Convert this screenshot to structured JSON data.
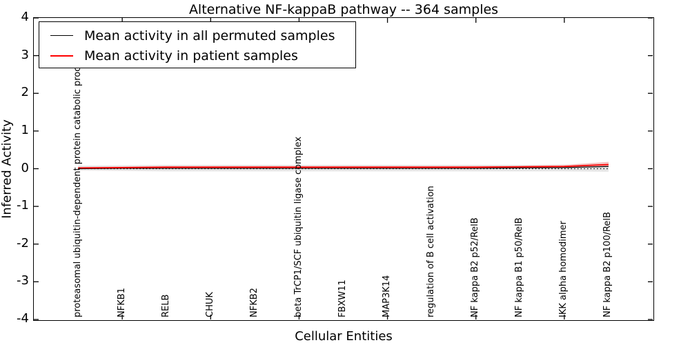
{
  "title": "Alternative NF-kappaB pathway -- 364 samples",
  "axes": {
    "ylabel": "Inferred Activity",
    "xlabel": "Cellular Entities"
  },
  "legend": {
    "position": "upper left",
    "items": [
      {
        "label": "Mean activity in all permuted samples",
        "color": "#000000",
        "thickness": 1.5
      },
      {
        "label": "Mean activity in patient samples",
        "color": "#ff0000",
        "thickness": 2
      }
    ]
  },
  "colors": {
    "permuted_line": "#000000",
    "patient_line": "#ff0000",
    "permuted_band": "#e6e6e6",
    "patient_band": "#f4c2c2",
    "zero_line": "#000000",
    "axis": "#000000"
  },
  "chart_data": {
    "type": "line",
    "title": "Alternative NF-kappaB pathway -- 364 samples",
    "xlabel": "Cellular Entities",
    "ylabel": "Inferred Activity",
    "xlim": [
      0,
      14
    ],
    "ylim": [
      -4,
      4
    ],
    "grid": false,
    "legend_position": "upper left",
    "categories": [
      "proteasomal ubiquitin-dependent protein catabolic process",
      "NFKB1",
      "RELB",
      "CHUK",
      "NFKB2",
      "beta TrCP1/SCF ubiquitin ligase complex",
      "FBXW11",
      "MAP3K14",
      "regulation of B cell activation",
      "NF kappa B2 p52/RelB",
      "NF kappa B1 p50/RelB",
      "IKK alpha homodimer",
      "NF kappa B2 p100/RelB"
    ],
    "x": [
      1,
      2,
      3,
      4,
      5,
      6,
      7,
      8,
      9,
      10,
      11,
      12,
      13
    ],
    "series": [
      {
        "name": "Mean activity in all permuted samples",
        "color": "#000000",
        "style": "solid",
        "width": 1.2,
        "values": [
          0.0,
          0.01,
          0.01,
          0.01,
          0.01,
          0.01,
          0.01,
          0.01,
          0.01,
          0.01,
          0.02,
          0.03,
          0.06
        ]
      },
      {
        "name": "Mean activity in patient samples",
        "color": "#ff0000",
        "style": "solid",
        "width": 1.8,
        "values": [
          0.02,
          0.03,
          0.04,
          0.04,
          0.04,
          0.04,
          0.04,
          0.04,
          0.04,
          0.04,
          0.05,
          0.06,
          0.11
        ]
      },
      {
        "name": "zero reference",
        "color": "#000000",
        "style": "dotted",
        "width": 1.2,
        "values": [
          0,
          0,
          0,
          0,
          0,
          0,
          0,
          0,
          0,
          0,
          0,
          0,
          0
        ]
      }
    ],
    "bands": [
      {
        "name": "permuted samples range",
        "color": "#e6e6e6",
        "upper": [
          0.08,
          0.09,
          0.1,
          0.1,
          0.1,
          0.1,
          0.1,
          0.1,
          0.1,
          0.1,
          0.1,
          0.11,
          0.13
        ],
        "lower": [
          -0.05,
          -0.06,
          -0.07,
          -0.07,
          -0.07,
          -0.07,
          -0.07,
          -0.07,
          -0.07,
          -0.07,
          -0.07,
          -0.07,
          -0.08
        ]
      },
      {
        "name": "patient samples range",
        "color": "#f4c2c2",
        "upper": [
          0.04,
          0.06,
          0.07,
          0.07,
          0.07,
          0.07,
          0.07,
          0.07,
          0.07,
          0.07,
          0.08,
          0.1,
          0.18
        ],
        "lower": [
          0.0,
          0.01,
          0.01,
          0.01,
          0.01,
          0.01,
          0.01,
          0.01,
          0.01,
          0.01,
          0.02,
          0.03,
          0.05
        ]
      }
    ],
    "xticks": [
      2,
      4,
      6,
      8,
      10,
      12
    ],
    "yticks": [
      {
        "value": 4,
        "label": "4"
      },
      {
        "value": 3,
        "label": "3"
      },
      {
        "value": 2,
        "label": "2"
      },
      {
        "value": 1,
        "label": "1"
      },
      {
        "value": 0,
        "label": "0"
      },
      {
        "value": -1,
        "label": "-1"
      },
      {
        "value": -2,
        "label": "-2"
      },
      {
        "value": -3,
        "label": "-3"
      },
      {
        "value": -4,
        "label": "-4"
      }
    ]
  }
}
